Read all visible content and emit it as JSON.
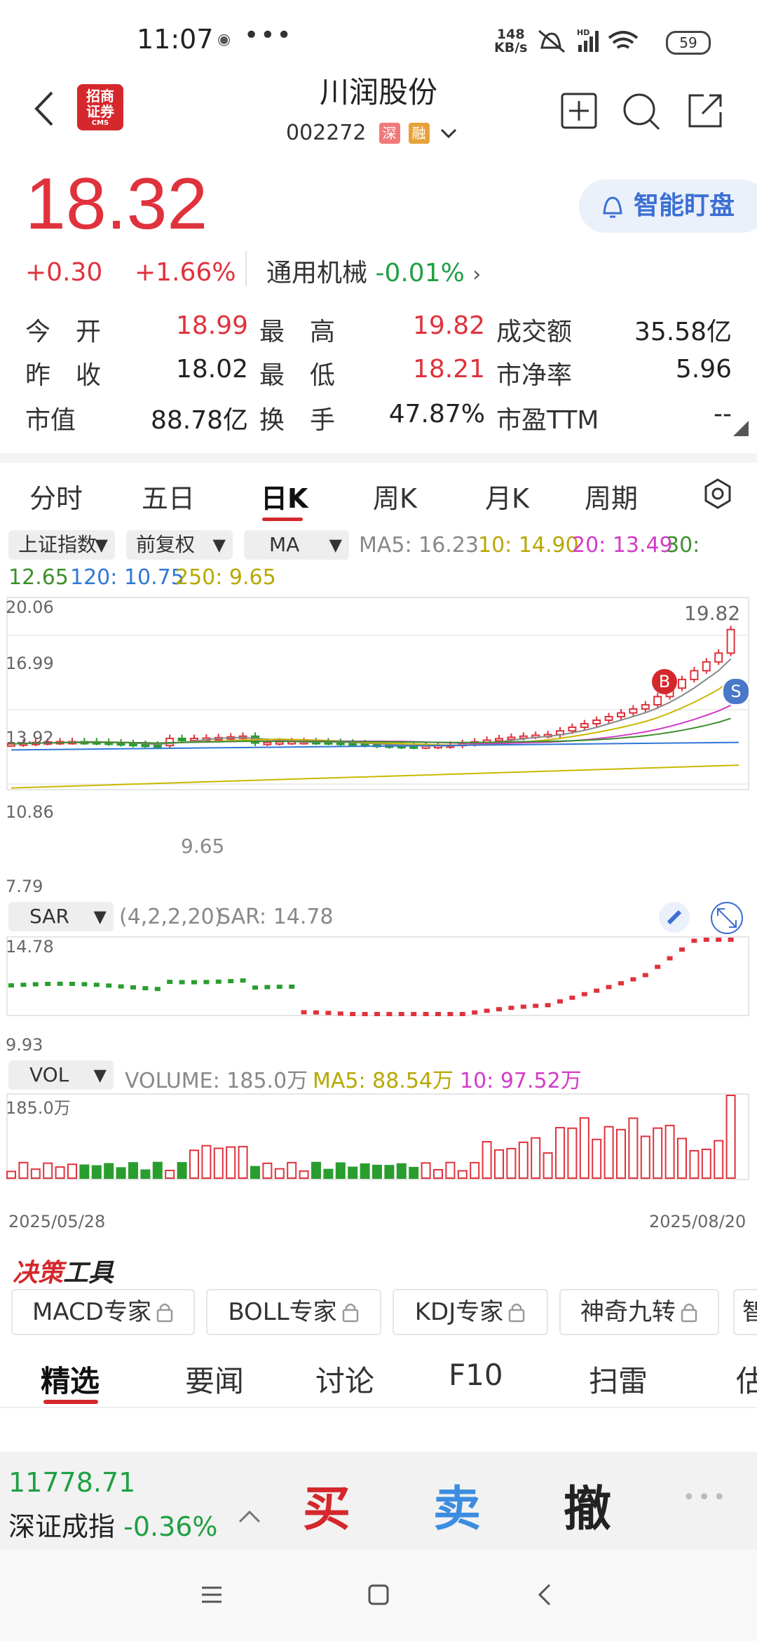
{
  "status_bar": {
    "time": "11:07",
    "more": "•••",
    "net_speed_value": "148",
    "net_speed_unit": "KB/s",
    "battery": "59"
  },
  "header": {
    "broker_logo_text_line1": "招商",
    "broker_logo_text_line2": "证券",
    "broker_logo_small": "CMS",
    "stock_name": "川润股份",
    "stock_code": "002272",
    "tag_market": "深",
    "tag_margin": "融"
  },
  "quote": {
    "price": "18.32",
    "change": "+0.30",
    "change_pct": "+1.66%",
    "sector_name": "通用机械",
    "sector_pct": "-0.01%",
    "smart_watch_label": "智能盯盘"
  },
  "stats": [
    {
      "label": "今　开",
      "value": "18.99",
      "color": "#e0323c"
    },
    {
      "label": "最　高",
      "value": "19.82",
      "color": "#e0323c"
    },
    {
      "label": "成交额",
      "value": "35.58亿",
      "color": "#222222"
    },
    {
      "label": "昨　收",
      "value": "18.02",
      "color": "#222222"
    },
    {
      "label": "最　低",
      "value": "18.21",
      "color": "#e0323c"
    },
    {
      "label": "市净率",
      "value": "5.96",
      "color": "#222222"
    },
    {
      "label": "市值",
      "value": "88.78亿",
      "color": "#222222"
    },
    {
      "label": "换　手",
      "value": "47.87%",
      "color": "#222222"
    },
    {
      "label": "市盈TTM",
      "value": "--",
      "color": "#222222"
    }
  ],
  "period_tabs": [
    "分时",
    "五日",
    "日K",
    "周K",
    "月K",
    "周期"
  ],
  "active_tab": "日K",
  "chart_controls": {
    "index_select": "上证指数",
    "adjust_select": "前复权",
    "indicator_select": "MA",
    "ma5": "MA5: 16.23",
    "ma10": "10: 14.90",
    "ma20": "20: 13.49",
    "ma30_label": "30:",
    "ma30_value": "12.65",
    "ma120": "120: 10.75",
    "ma250": "250: 9.65"
  },
  "main_chart": {
    "y_labels": [
      "20.06",
      "16.99",
      "13.92",
      "10.86",
      "7.79"
    ],
    "high_label": "19.82",
    "low_label": "9.65",
    "buy_marker": "B",
    "sell_marker": "S"
  },
  "sar_panel": {
    "select": "SAR",
    "params": "(4,2,2,20)",
    "value": "SAR: 14.78",
    "y_top": "14.78",
    "y_bottom": "9.93"
  },
  "vol_panel": {
    "select": "VOL",
    "volume": "VOLUME: 185.0万",
    "ma5": "MA5: 88.54万",
    "ma10": "10: 97.52万",
    "y_top": "185.0万",
    "date_start": "2025/05/28",
    "date_end": "2025/08/20"
  },
  "colors": {
    "up": "#e0323c",
    "down": "#2a9d2f",
    "ma5": "#888888",
    "ma10": "#c9b800",
    "ma20": "#d23cc8",
    "ma30": "#3d8f2e",
    "ma120": "#2f78d6",
    "ma250": "#c9b800"
  },
  "tools": {
    "title_red": "决策",
    "title_black": "工具",
    "items": [
      "MACD专家",
      "BOLL专家",
      "KDJ专家",
      "神奇九转",
      "智"
    ]
  },
  "bottom_tabs": [
    "精选",
    "要闻",
    "讨论",
    "F10",
    "扫雷",
    "估"
  ],
  "index_bar": {
    "value": "11778.71",
    "name": "深证成指",
    "pct": "-0.36%"
  },
  "trade_buttons": {
    "buy": "买",
    "sell": "卖",
    "cancel": "撤",
    "more": "•••"
  }
}
